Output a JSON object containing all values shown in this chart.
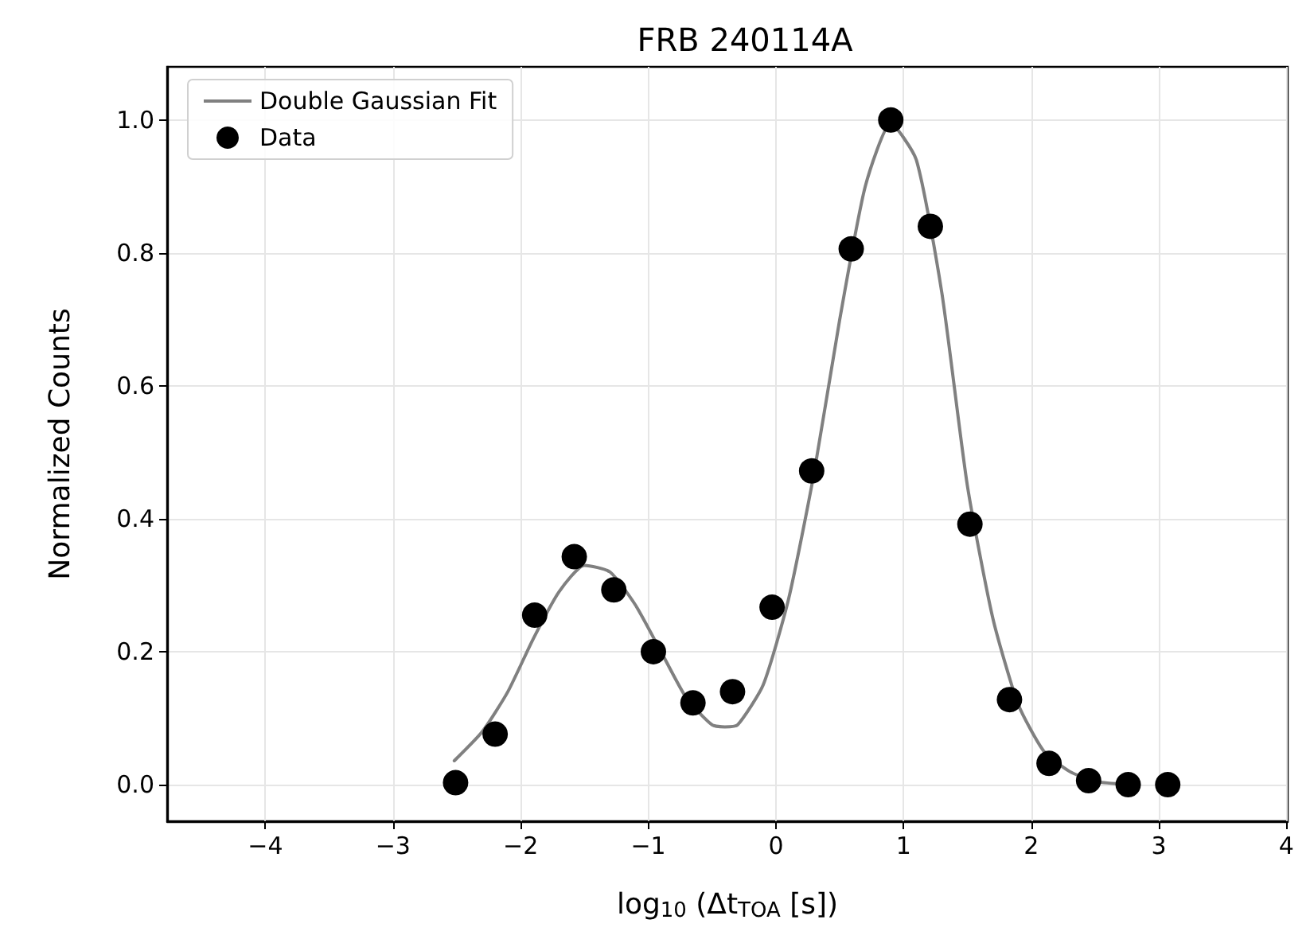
{
  "chart_data": {
    "type": "scatter",
    "title": "FRB 240114A",
    "xlabel": "log$_{10}$ (Δt$_{TOA}$ [s])",
    "ylabel": "Normalized Counts",
    "series": [
      {
        "name": "Double Gaussian Fit",
        "type": "line",
        "color": "#808080",
        "marker": "none",
        "line_style": "solid",
        "x": [
          -2.52,
          -2.3,
          -2.1,
          -1.9,
          -1.7,
          -1.5,
          -1.3,
          -1.1,
          -0.9,
          -0.7,
          -0.5,
          -0.4,
          -0.3,
          -0.1,
          0.1,
          0.3,
          0.5,
          0.7,
          0.9,
          1.1,
          1.3,
          1.5,
          1.7,
          1.9,
          2.1,
          2.3,
          2.5,
          2.7
        ],
        "values": [
          0.036,
          0.08,
          0.14,
          0.22,
          0.29,
          0.33,
          0.32,
          0.27,
          0.2,
          0.13,
          0.09,
          0.087,
          0.09,
          0.15,
          0.28,
          0.47,
          0.7,
          0.9,
          0.995,
          0.94,
          0.74,
          0.45,
          0.25,
          0.12,
          0.05,
          0.02,
          0.005,
          0.001
        ]
      },
      {
        "name": "Data",
        "color": "#000000",
        "marker": "circle",
        "x": [
          -2.51,
          -2.2,
          -1.89,
          -1.58,
          -1.27,
          -0.96,
          -0.65,
          -0.34,
          -0.03,
          0.28,
          0.59,
          0.9,
          1.21,
          1.52,
          1.83,
          2.14,
          2.45,
          2.76,
          3.07
        ],
        "values": [
          0.003,
          0.076,
          0.255,
          0.343,
          0.293,
          0.2,
          0.123,
          0.14,
          0.267,
          0.472,
          0.806,
          1.0,
          0.84,
          0.392,
          0.128,
          0.032,
          0.006,
          0.0,
          0.0
        ]
      }
    ],
    "xlim": [
      -4.77,
      4.01
    ],
    "ylim": [
      -0.055,
      1.08
    ],
    "xticks": [
      {
        "value": -4,
        "label": "−4"
      },
      {
        "value": -3,
        "label": "−3"
      },
      {
        "value": -2,
        "label": "−2"
      },
      {
        "value": -1,
        "label": "−1"
      },
      0,
      1,
      2,
      3,
      4
    ],
    "yticks": [
      {
        "value": 0,
        "label": "0.0"
      },
      {
        "value": 0.2,
        "label": "0.2"
      },
      {
        "value": 0.4,
        "label": "0.4"
      },
      {
        "value": 0.6,
        "label": "0.6"
      },
      {
        "value": 0.8,
        "label": "0.8"
      },
      {
        "value": 1,
        "label": "1.0"
      }
    ],
    "grid": true,
    "legend": "top left"
  }
}
